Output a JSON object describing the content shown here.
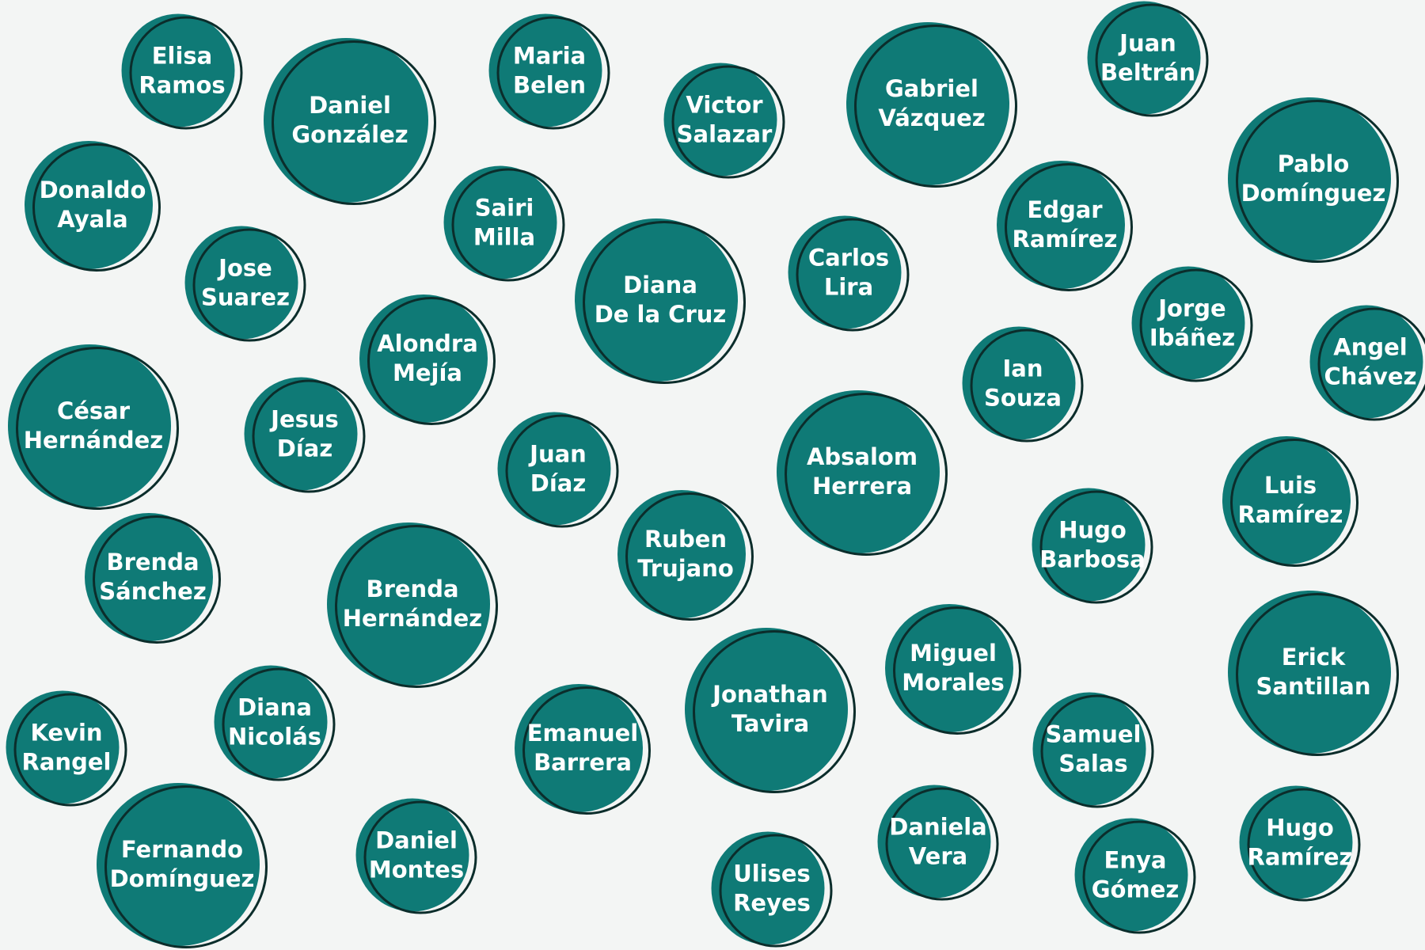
{
  "palette": {
    "background": "#f3f5f4",
    "bubble_fill": "#0f7a76",
    "bubble_ring": "#0b2d2b",
    "text": "#ffffff"
  },
  "bubbles": [
    {
      "line1": "Elisa",
      "line2": "Ramos"
    },
    {
      "line1": "Daniel",
      "line2": "González"
    },
    {
      "line1": "Maria",
      "line2": "Belen"
    },
    {
      "line1": "Victor",
      "line2": "Salazar"
    },
    {
      "line1": "Gabriel",
      "line2": "Vázquez"
    },
    {
      "line1": "Juan",
      "line2": "Beltrán"
    },
    {
      "line1": "Pablo",
      "line2": "Domínguez"
    },
    {
      "line1": "Donaldo",
      "line2": "Ayala"
    },
    {
      "line1": "Sairi",
      "line2": "Milla"
    },
    {
      "line1": "Edgar",
      "line2": "Ramírez"
    },
    {
      "line1": "Jose",
      "line2": "Suarez"
    },
    {
      "line1": "Diana",
      "line2": "De la Cruz"
    },
    {
      "line1": "Carlos",
      "line2": "Lira"
    },
    {
      "line1": "Jorge",
      "line2": "Ibáñez"
    },
    {
      "line1": "Angel",
      "line2": "Chávez"
    },
    {
      "line1": "Alondra",
      "line2": "Mejía"
    },
    {
      "line1": "Ian",
      "line2": "Souza"
    },
    {
      "line1": "César",
      "line2": "Hernández"
    },
    {
      "line1": "Jesus",
      "line2": "Díaz"
    },
    {
      "line1": "Juan",
      "line2": "Díaz"
    },
    {
      "line1": "Absalom",
      "line2": "Herrera"
    },
    {
      "line1": "Luis",
      "line2": "Ramírez"
    },
    {
      "line1": "Hugo",
      "line2": "Barbosa"
    },
    {
      "line1": "Brenda",
      "line2": "Sánchez"
    },
    {
      "line1": "Ruben",
      "line2": "Trujano"
    },
    {
      "line1": "Brenda",
      "line2": "Hernández"
    },
    {
      "line1": "Miguel",
      "line2": "Morales"
    },
    {
      "line1": "Erick",
      "line2": "Santillan"
    },
    {
      "line1": "Jonathan",
      "line2": "Tavira"
    },
    {
      "line1": "Kevin",
      "line2": "Rangel"
    },
    {
      "line1": "Diana",
      "line2": "Nicolás"
    },
    {
      "line1": "Emanuel",
      "line2": "Barrera"
    },
    {
      "line1": "Samuel",
      "line2": "Salas"
    },
    {
      "line1": "Fernando",
      "line2": "Domínguez"
    },
    {
      "line1": "Daniel",
      "line2": "Montes"
    },
    {
      "line1": "Daniela",
      "line2": "Vera"
    },
    {
      "line1": "Hugo",
      "line2": "Ramírez"
    },
    {
      "line1": "Enya",
      "line2": "Gómez"
    },
    {
      "line1": "Ulises",
      "line2": "Reyes"
    }
  ]
}
